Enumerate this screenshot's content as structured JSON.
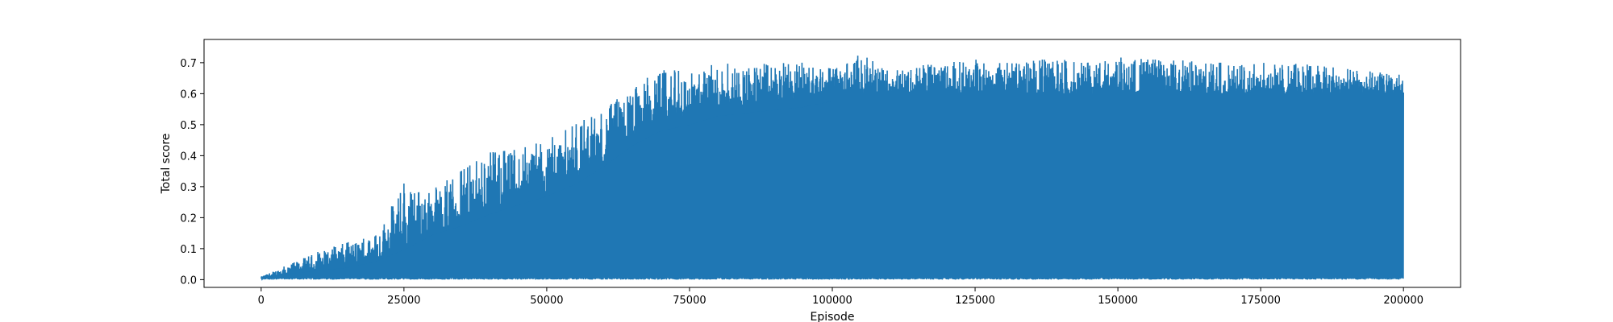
{
  "chart_data": {
    "type": "line",
    "title": "",
    "xlabel": "Episode",
    "ylabel": "Total score",
    "xlim": [
      -10000,
      210000
    ],
    "ylim": [
      -0.025,
      0.775
    ],
    "xticks": [
      0,
      25000,
      50000,
      75000,
      100000,
      125000,
      150000,
      175000,
      200000
    ],
    "xtick_labels": [
      "0",
      "25000",
      "50000",
      "75000",
      "100000",
      "125000",
      "150000",
      "175000",
      "200000"
    ],
    "yticks": [
      0.0,
      0.1,
      0.2,
      0.3,
      0.4,
      0.5,
      0.6,
      0.7
    ],
    "ytick_labels": [
      "0.0",
      "0.1",
      "0.2",
      "0.3",
      "0.4",
      "0.5",
      "0.6",
      "0.7"
    ],
    "grid": false,
    "legend": "none",
    "series": [
      {
        "color": "#1f77b4",
        "description_of_envelope": "per-episode score oscillates between ~0.0 and an upper envelope",
        "x": [
          0,
          5000,
          10000,
          15000,
          20000,
          25000,
          30000,
          35000,
          40000,
          45000,
          50000,
          55000,
          60000,
          65000,
          70000,
          75000,
          80000,
          85000,
          90000,
          95000,
          100000,
          105000,
          110000,
          115000,
          120000,
          125000,
          130000,
          135000,
          140000,
          145000,
          150000,
          155000,
          160000,
          165000,
          170000,
          175000,
          180000,
          185000,
          190000,
          195000,
          200000
        ],
        "upper": [
          0.01,
          0.05,
          0.09,
          0.12,
          0.14,
          0.31,
          0.29,
          0.35,
          0.41,
          0.42,
          0.45,
          0.5,
          0.55,
          0.62,
          0.68,
          0.67,
          0.7,
          0.69,
          0.7,
          0.7,
          0.68,
          0.73,
          0.67,
          0.69,
          0.7,
          0.71,
          0.7,
          0.71,
          0.71,
          0.7,
          0.72,
          0.71,
          0.71,
          0.7,
          0.7,
          0.7,
          0.7,
          0.69,
          0.68,
          0.67,
          0.66
        ],
        "mean_level": [
          0.005,
          0.02,
          0.03,
          0.04,
          0.06,
          0.1,
          0.15,
          0.18,
          0.22,
          0.25,
          0.28,
          0.32,
          0.38,
          0.45,
          0.5,
          0.52,
          0.55,
          0.56,
          0.57,
          0.58,
          0.6,
          0.6,
          0.6,
          0.6,
          0.6,
          0.6,
          0.6,
          0.6,
          0.6,
          0.6,
          0.6,
          0.6,
          0.6,
          0.6,
          0.6,
          0.6,
          0.6,
          0.6,
          0.6,
          0.6,
          0.6
        ],
        "lower": [
          0.0,
          0.0,
          0.0,
          0.0,
          0.0,
          0.0,
          0.0,
          0.0,
          0.0,
          0.0,
          0.0,
          0.0,
          0.0,
          0.0,
          0.0,
          0.0,
          0.0,
          0.0,
          0.0,
          0.0,
          0.0,
          0.0,
          0.0,
          0.0,
          0.0,
          0.0,
          0.0,
          0.0,
          0.0,
          0.0,
          0.0,
          0.0,
          0.0,
          0.0,
          0.0,
          0.0,
          0.0,
          0.0,
          0.0,
          0.0,
          0.0
        ]
      }
    ]
  }
}
